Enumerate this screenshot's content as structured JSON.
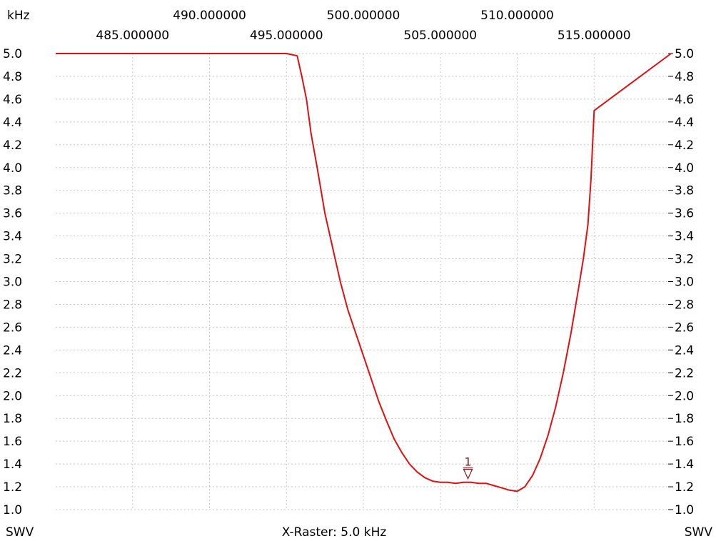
{
  "chart_data": {
    "type": "line",
    "x_unit_label": "kHz",
    "x_ticks_upper": [
      "490.000000",
      "500.000000",
      "510.000000"
    ],
    "x_ticks_lower": [
      "485.000000",
      "495.000000",
      "505.000000",
      "515.000000"
    ],
    "y_ticks": [
      "5.0",
      "4.8",
      "4.6",
      "4.4",
      "4.2",
      "4.0",
      "3.8",
      "3.6",
      "3.4",
      "3.2",
      "3.0",
      "2.8",
      "2.6",
      "2.4",
      "2.2",
      "2.0",
      "1.8",
      "1.6",
      "1.4",
      "1.2",
      "1.0"
    ],
    "xlim": [
      480,
      520
    ],
    "ylim": [
      1.0,
      5.0
    ],
    "grid": true,
    "footer_left": "SWV",
    "footer_center": "X-Raster: 5.0 kHz",
    "footer_right": "SWV",
    "colors": {
      "trace": "#e01010",
      "marker": "#8a1a1a",
      "grid": "#c8c8c8"
    },
    "series": [
      {
        "x": [
          480.0,
          495.0,
          495.7,
          496.0,
          496.3,
          496.6,
          497.0,
          497.5,
          498.0,
          498.5,
          499.0,
          499.5,
          500.0,
          500.5,
          501.0,
          501.5,
          502.0,
          502.5,
          503.0,
          503.5,
          504.0,
          504.5,
          505.0,
          505.5,
          506.0,
          506.5,
          507.0,
          507.5,
          508.0,
          508.5,
          509.0,
          509.5,
          510.0,
          510.5,
          511.0,
          511.5,
          512.0,
          512.5,
          513.0,
          513.5,
          514.0,
          514.3,
          514.6,
          514.8,
          515.0,
          520.0
        ],
        "y": [
          5.0,
          5.0,
          4.98,
          4.8,
          4.6,
          4.3,
          4.0,
          3.6,
          3.3,
          3.0,
          2.75,
          2.55,
          2.35,
          2.15,
          1.95,
          1.78,
          1.62,
          1.5,
          1.4,
          1.33,
          1.28,
          1.25,
          1.24,
          1.24,
          1.23,
          1.24,
          1.24,
          1.23,
          1.23,
          1.21,
          1.19,
          1.17,
          1.16,
          1.2,
          1.3,
          1.45,
          1.65,
          1.9,
          2.2,
          2.55,
          2.95,
          3.2,
          3.5,
          3.9,
          4.5,
          5.0
        ]
      }
    ],
    "markers": [
      {
        "label": "1",
        "x": 506.8,
        "y": 1.24
      }
    ]
  }
}
